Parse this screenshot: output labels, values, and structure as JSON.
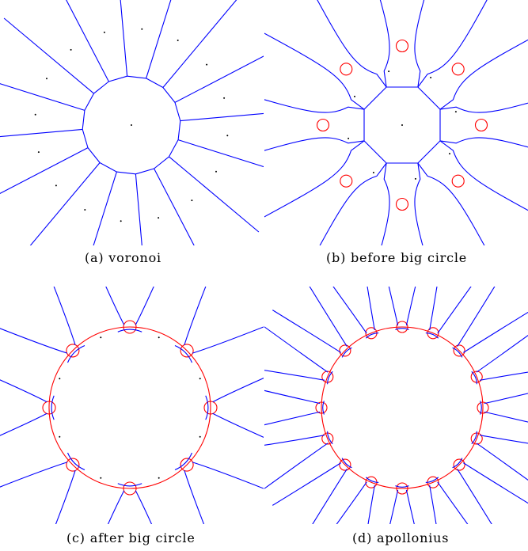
{
  "colors": {
    "edge": "#0000ff",
    "circle": "#ff0000",
    "site": "#000000"
  },
  "panels": [
    {
      "id": "a",
      "caption": "(a) voronoi"
    },
    {
      "id": "b",
      "caption": "(b) before big circle"
    },
    {
      "id": "c",
      "caption": "(c) after big circle"
    },
    {
      "id": "d",
      "caption": "(d) apollonius"
    }
  ]
}
